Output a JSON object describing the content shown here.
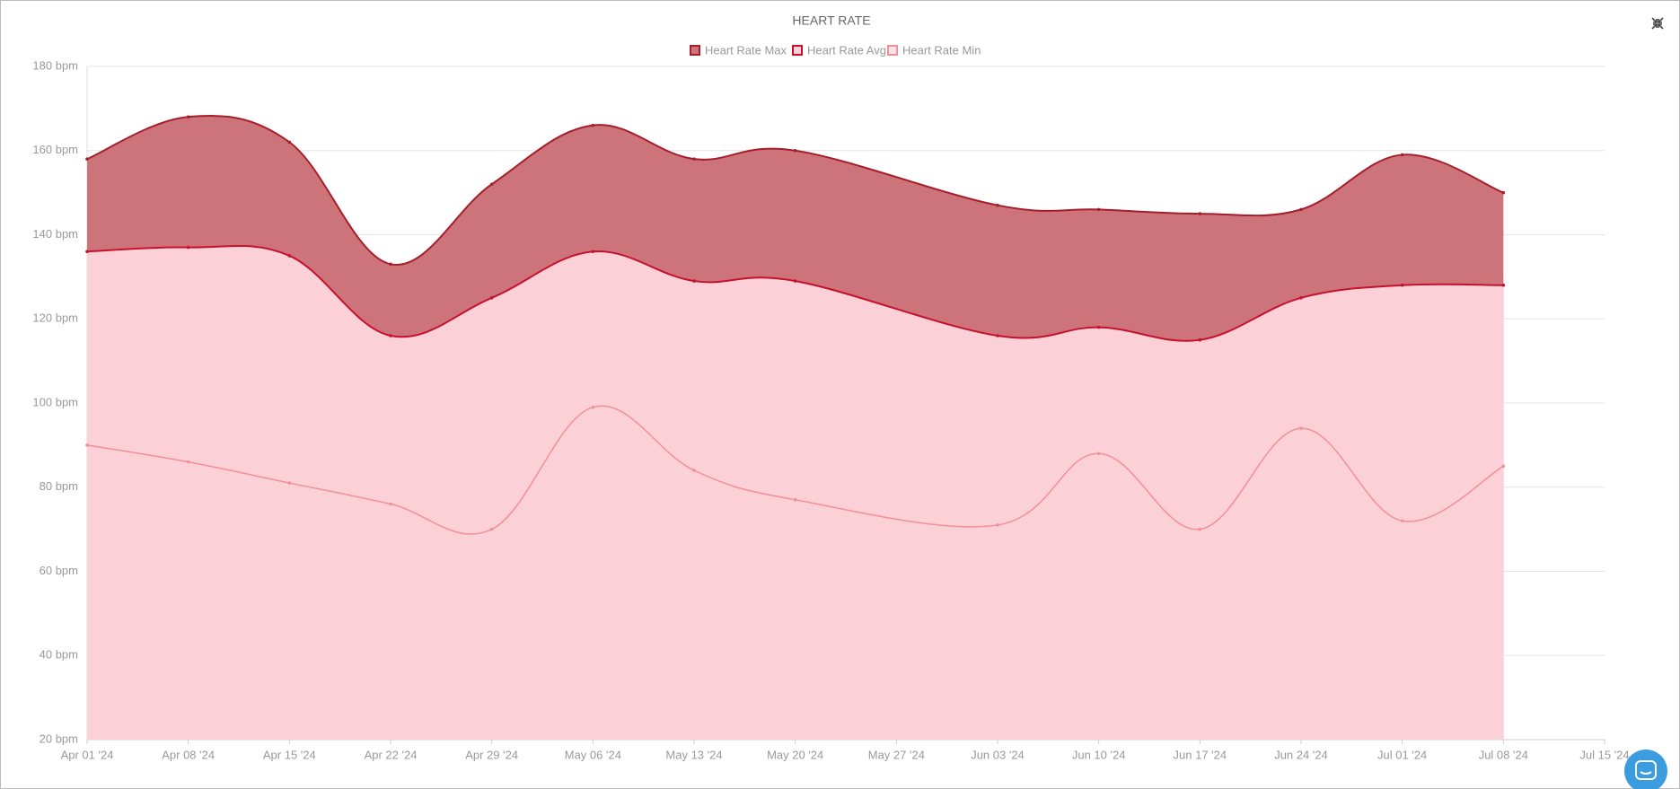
{
  "chart_data": {
    "type": "area",
    "title": "HEART RATE",
    "x": [
      "2024-04-01",
      "2024-04-08",
      "2024-04-15",
      "2024-04-22",
      "2024-04-29",
      "2024-05-06",
      "2024-05-13",
      "2024-05-20",
      "2024-06-03",
      "2024-06-10",
      "2024-06-17",
      "2024-06-24",
      "2024-07-01",
      "2024-07-08"
    ],
    "series": [
      {
        "name": "Heart Rate Max",
        "color": "#a61e2b",
        "fill": "#cc747a",
        "values": [
          158,
          168,
          162,
          133,
          152,
          166,
          158,
          160,
          147,
          146,
          145,
          146,
          159,
          150
        ]
      },
      {
        "name": "Heart Rate Avg",
        "color": "#c8102e",
        "fill": "#fbd1d7",
        "values": [
          136,
          137,
          135,
          116,
          125,
          136,
          129,
          129,
          116,
          118,
          115,
          125,
          128,
          128
        ]
      },
      {
        "name": "Heart Rate Min",
        "color": "#f28f98",
        "fill": "#fde4e7",
        "values": [
          90,
          86,
          81,
          76,
          70,
          99,
          84,
          77,
          71,
          88,
          70,
          94,
          72,
          85
        ]
      }
    ],
    "xlim": [
      "2024-04-01",
      "2024-07-15"
    ],
    "xticks": [
      {
        "value": "2024-04-01",
        "label": "Apr 01 '24"
      },
      {
        "value": "2024-04-08",
        "label": "Apr 08 '24"
      },
      {
        "value": "2024-04-15",
        "label": "Apr 15 '24"
      },
      {
        "value": "2024-04-22",
        "label": "Apr 22 '24"
      },
      {
        "value": "2024-04-29",
        "label": "Apr 29 '24"
      },
      {
        "value": "2024-05-06",
        "label": "May 06 '24"
      },
      {
        "value": "2024-05-13",
        "label": "May 13 '24"
      },
      {
        "value": "2024-05-20",
        "label": "May 20 '24"
      },
      {
        "value": "2024-05-27",
        "label": "May 27 '24"
      },
      {
        "value": "2024-06-03",
        "label": "Jun 03 '24"
      },
      {
        "value": "2024-06-10",
        "label": "Jun 10 '24"
      },
      {
        "value": "2024-06-17",
        "label": "Jun 17 '24"
      },
      {
        "value": "2024-06-24",
        "label": "Jun 24 '24"
      },
      {
        "value": "2024-07-01",
        "label": "Jul 01 '24"
      },
      {
        "value": "2024-07-08",
        "label": "Jul 08 '24"
      },
      {
        "value": "2024-07-15",
        "label": "Jul 15 '24"
      }
    ],
    "ylim": [
      20,
      180
    ],
    "yticks": [
      {
        "value": 20,
        "label": "20 bpm"
      },
      {
        "value": 40,
        "label": "40 bpm"
      },
      {
        "value": 60,
        "label": "60 bpm"
      },
      {
        "value": 80,
        "label": "80 bpm"
      },
      {
        "value": 100,
        "label": "100 bpm"
      },
      {
        "value": 120,
        "label": "120 bpm"
      },
      {
        "value": 140,
        "label": "140 bpm"
      },
      {
        "value": 160,
        "label": "160 bpm"
      },
      {
        "value": 180,
        "label": "180 bpm"
      }
    ],
    "grid": true,
    "legend": "top"
  }
}
